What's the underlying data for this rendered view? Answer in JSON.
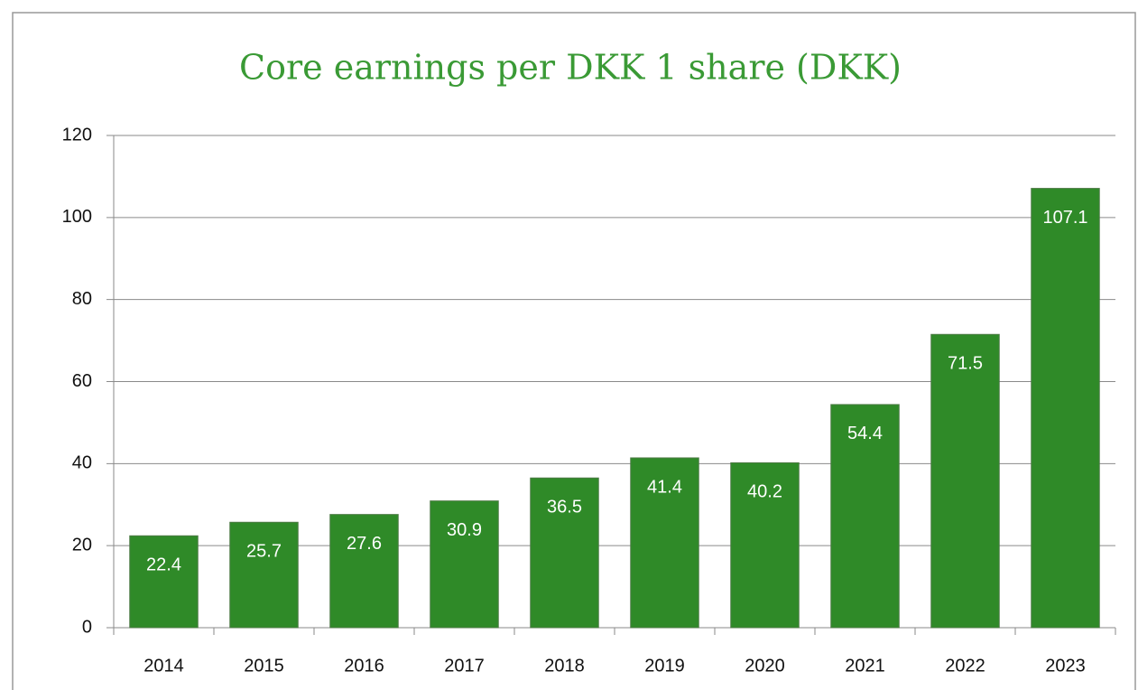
{
  "chart_data": {
    "type": "bar",
    "title": "Core earnings per DKK 1 share (DKK)",
    "categories": [
      "2014",
      "2015",
      "2016",
      "2017",
      "2018",
      "2019",
      "2020",
      "2021",
      "2022",
      "2023"
    ],
    "values": [
      22.4,
      25.7,
      27.6,
      30.9,
      36.5,
      41.4,
      40.2,
      54.4,
      71.5,
      107.1
    ],
    "color": "#2f8a28",
    "ylim": [
      0,
      120
    ],
    "yticks": [
      0,
      20,
      40,
      60,
      80,
      100,
      120
    ],
    "grid": true
  }
}
